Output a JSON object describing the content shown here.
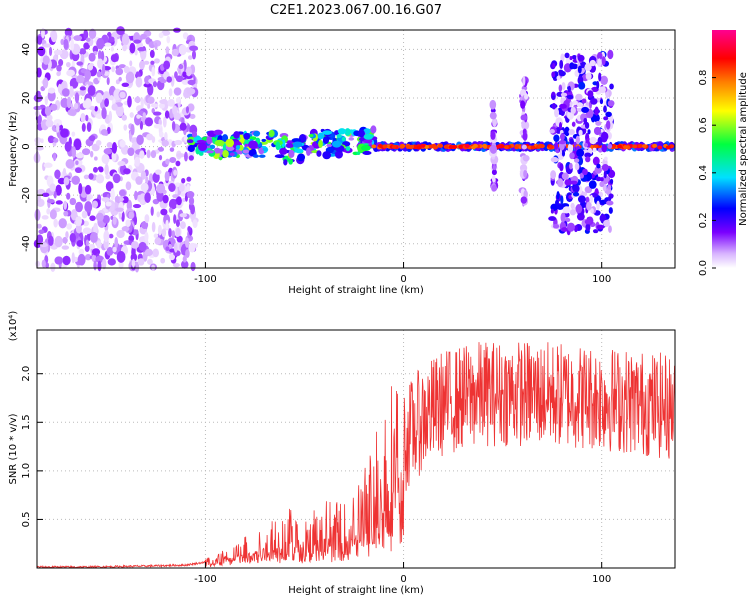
{
  "title": "C2E1.2023.067.00.16.G07",
  "chart_data": [
    {
      "type": "heatmap",
      "xlabel": "Height of straight line (km)",
      "ylabel": "Frequency (Hz)",
      "xlim": [
        -185,
        137
      ],
      "ylim": [
        -50,
        48
      ],
      "xticks": [
        "-100",
        "0",
        "100"
      ],
      "yticks": [
        "40",
        "20",
        "0",
        "-20",
        "-40"
      ],
      "xtick_values": [
        -100,
        0,
        100
      ],
      "ytick_values": [
        40,
        20,
        0,
        -20,
        -40
      ],
      "colorbar": {
        "label": "Normalized spectral amplitude",
        "range": [
          0,
          1
        ],
        "ticks": [
          "0.0",
          "0.2",
          "0.4",
          "0.6",
          "0.8"
        ],
        "tick_values": [
          0.0,
          0.2,
          0.4,
          0.6,
          0.8
        ],
        "colormap": [
          "#ffffff",
          "#e0c0ff",
          "#7a00ff",
          "#0000ff",
          "#00e0ff",
          "#00ff40",
          "#ffff00",
          "#ff8000",
          "#ff0000",
          "#ff0090"
        ]
      },
      "regions": [
        {
          "name": "noise",
          "x": [
            -185,
            -105
          ],
          "freq": [
            -50,
            48
          ],
          "amplitude": 0.12
        },
        {
          "name": "emerging-signal",
          "x": [
            -108,
            -15
          ],
          "freq_center": [
            -2,
            2
          ],
          "amplitude": 0.45
        },
        {
          "name": "strong-signal",
          "x": [
            -15,
            137
          ],
          "freq_center": 0,
          "amplitude": 0.9
        },
        {
          "name": "spread-band-1",
          "x": [
            45,
            46
          ],
          "freq": [
            -18,
            18
          ],
          "amplitude": 0.2
        },
        {
          "name": "spread-band-2",
          "x": [
            60,
            62
          ],
          "freq": [
            -23,
            30
          ],
          "amplitude": 0.2
        },
        {
          "name": "spread-band-3",
          "x": [
            75,
            105
          ],
          "freq": [
            -35,
            38
          ],
          "amplitude": 0.3
        }
      ],
      "grid": true
    },
    {
      "type": "line",
      "xlabel": "Height of straight line (km)",
      "ylabel": "SNR (10 * v/v)",
      "y_multiplier": "(x10⁴)",
      "xlim": [
        -185,
        137
      ],
      "ylim": [
        0,
        2.45
      ],
      "xticks": [
        "-100",
        "0",
        "100"
      ],
      "yticks": [
        "0.5",
        "1.0",
        "1.5",
        "2.0"
      ],
      "xtick_values": [
        -100,
        0,
        100
      ],
      "ytick_values": [
        0.5,
        1.0,
        1.5,
        2.0
      ],
      "color": "#ee3333",
      "grid": true,
      "x": [
        -185,
        -160,
        -130,
        -110,
        -100,
        -90,
        -80,
        -70,
        -60,
        -50,
        -40,
        -30,
        -20,
        -15,
        -10,
        -5,
        0,
        10,
        20,
        30,
        40,
        60,
        80,
        100,
        120,
        137
      ],
      "y": [
        0.01,
        0.01,
        0.02,
        0.03,
        0.06,
        0.12,
        0.18,
        0.25,
        0.35,
        0.3,
        0.4,
        0.35,
        0.55,
        0.75,
        0.95,
        1.1,
        1.3,
        1.55,
        1.7,
        1.75,
        1.8,
        1.8,
        1.78,
        1.75,
        1.7,
        1.65
      ]
    }
  ]
}
